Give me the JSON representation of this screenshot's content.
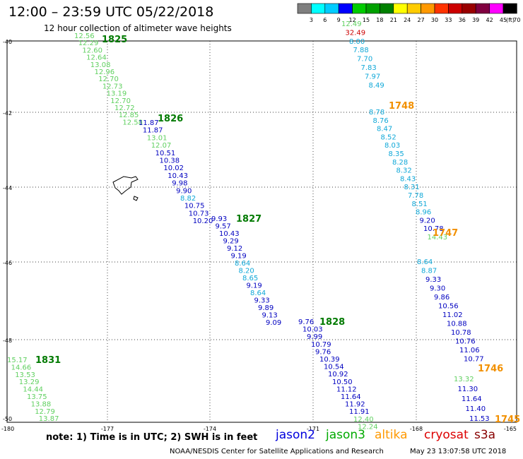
{
  "header": {
    "title": "12:00 – 23:59 UTC 05/22/2018",
    "subtitle": "12 hour collection of altimeter wave heights"
  },
  "legend": {
    "unit": "(ft)",
    "labels": [
      "3",
      "6",
      "9",
      "12",
      "15",
      "18",
      "21",
      "24",
      "27",
      "30",
      "33",
      "36",
      "39",
      "42",
      "45",
      "70"
    ],
    "colors": [
      "#7f7f7f",
      "#00ffff",
      "#00ccff",
      "#0000ff",
      "#00cc00",
      "#00a000",
      "#008000",
      "#ffff00",
      "#ffcc00",
      "#ff9900",
      "#ff3300",
      "#cc0000",
      "#990000",
      "#800040",
      "#ff00ff",
      "#000000"
    ]
  },
  "axes": {
    "lat_labels": [
      "-40",
      "-42",
      "-44",
      "-46",
      "-48",
      "-50"
    ],
    "lon_labels": [
      "-180",
      "-177",
      "-174",
      "-171",
      "-168",
      "-165"
    ]
  },
  "chart_data": {
    "type": "scatter",
    "note": "",
    "passes": [
      {
        "time": "1825",
        "time_color": "#007a00",
        "points": [
          [
            "12.56",
            "#60d060"
          ],
          [
            "12.29",
            "#60d060"
          ],
          [
            "12.60",
            "#60d060"
          ],
          [
            "12.64",
            "#60d060"
          ],
          [
            "13.08",
            "#60d060"
          ],
          [
            "12.96",
            "#60d060"
          ],
          [
            "12.70",
            "#60d060"
          ],
          [
            "12.73",
            "#60d060"
          ],
          [
            "13.19",
            "#60d060"
          ],
          [
            "12.70",
            "#60d060"
          ],
          [
            "12.72",
            "#60d060"
          ],
          [
            "12.85",
            "#60d060"
          ],
          [
            "12.58",
            "#60d060"
          ]
        ]
      },
      {
        "time": "1826",
        "time_color": "#007a00",
        "points": [
          [
            "11.87",
            "#0000c0"
          ],
          [
            "11.87",
            "#0000c0"
          ],
          [
            "13.01",
            "#60d060"
          ],
          [
            "12.07",
            "#60d060"
          ],
          [
            "10.51",
            "#0000c0"
          ],
          [
            "10.38",
            "#0000c0"
          ],
          [
            "10.02",
            "#0000c0"
          ],
          [
            "10.43",
            "#0000c0"
          ],
          [
            "9.98",
            "#0000c0"
          ],
          [
            "9.90",
            "#0000c0"
          ],
          [
            "8.82",
            "#10a8d8"
          ],
          [
            "10.75",
            "#0000c0"
          ],
          [
            "10.73",
            "#0000c0"
          ],
          [
            "10.20",
            "#0000c0"
          ]
        ]
      },
      {
        "time": "1827",
        "time_color": "#007a00",
        "points": [
          [
            "9.93",
            "#0000c0"
          ],
          [
            "9.57",
            "#0000c0"
          ],
          [
            "10.43",
            "#0000c0"
          ],
          [
            "9.29",
            "#0000c0"
          ],
          [
            "9.12",
            "#0000c0"
          ],
          [
            "9.19",
            "#0000c0"
          ],
          [
            "8.64",
            "#10a8d8"
          ],
          [
            "8.20",
            "#10a8d8"
          ],
          [
            "8.65",
            "#10a8d8"
          ],
          [
            "9.19",
            "#0000c0"
          ],
          [
            "8.64",
            "#10a8d8"
          ],
          [
            "9.33",
            "#0000c0"
          ],
          [
            "9.89",
            "#0000c0"
          ],
          [
            "9.13",
            "#0000c0"
          ],
          [
            "9.09",
            "#0000c0"
          ]
        ]
      },
      {
        "time": "1828",
        "time_color": "#007a00",
        "points": [
          [
            "9.76",
            "#0000c0"
          ],
          [
            "10.03",
            "#0000c0"
          ],
          [
            "9.99",
            "#0000c0"
          ],
          [
            "10.79",
            "#0000c0"
          ],
          [
            "9.76",
            "#0000c0"
          ],
          [
            "10.39",
            "#0000c0"
          ],
          [
            "10.54",
            "#0000c0"
          ],
          [
            "10.92",
            "#0000c0"
          ],
          [
            "10.50",
            "#0000c0"
          ],
          [
            "11.12",
            "#0000c0"
          ],
          [
            "11.64",
            "#0000c0"
          ],
          [
            "11.92",
            "#0000c0"
          ],
          [
            "11.91",
            "#0000c0"
          ],
          [
            "12.40",
            "#60d060"
          ],
          [
            "12.24",
            "#60d060"
          ]
        ]
      },
      {
        "time": "1831",
        "time_color": "#007a00",
        "points": [
          [
            "15.17",
            "#60d060"
          ],
          [
            "14.66",
            "#60d060"
          ],
          [
            "13.53",
            "#60d060"
          ],
          [
            "13.29",
            "#60d060"
          ],
          [
            "14.44",
            "#60d060"
          ],
          [
            "13.75",
            "#60d060"
          ],
          [
            "13.88",
            "#60d060"
          ],
          [
            "12.79",
            "#60d060"
          ],
          [
            "13.87",
            "#60d060"
          ]
        ]
      },
      {
        "time": "1748",
        "time_color": "#f29000",
        "points": [
          [
            "12.49",
            "#60d060"
          ],
          [
            "32.49",
            "#cc0000"
          ],
          [
            "8.00",
            "#10a8d8"
          ],
          [
            "7.88",
            "#10a8d8"
          ],
          [
            "7.70",
            "#10a8d8"
          ],
          [
            "7.83",
            "#10a8d8"
          ],
          [
            "7.97",
            "#10a8d8"
          ],
          [
            "8.49",
            "#10a8d8"
          ]
        ]
      },
      {
        "time": "1747",
        "time_color": "#f29000",
        "points": [
          [
            "8.78",
            "#10a8d8"
          ],
          [
            "8.76",
            "#10a8d8"
          ],
          [
            "8.47",
            "#10a8d8"
          ],
          [
            "8.52",
            "#10a8d8"
          ],
          [
            "8.03",
            "#10a8d8"
          ],
          [
            "8.35",
            "#10a8d8"
          ],
          [
            "8.28",
            "#10a8d8"
          ],
          [
            "8.32",
            "#10a8d8"
          ],
          [
            "8.43",
            "#10a8d8"
          ],
          [
            "8.31",
            "#10a8d8"
          ],
          [
            "7.78",
            "#10a8d8"
          ],
          [
            "8.51",
            "#10a8d8"
          ],
          [
            "8.96",
            "#10a8d8"
          ],
          [
            "9.20",
            "#0000c0"
          ],
          [
            "10.78",
            "#0000c0"
          ],
          [
            "14.43",
            "#60d060"
          ]
        ]
      },
      {
        "time": "1746",
        "time_color": "#f29000",
        "points": [
          [
            "8.64",
            "#10a8d8"
          ],
          [
            "8.87",
            "#10a8d8"
          ],
          [
            "9.33",
            "#0000c0"
          ],
          [
            "9.30",
            "#0000c0"
          ],
          [
            "9.86",
            "#0000c0"
          ],
          [
            "10.56",
            "#0000c0"
          ],
          [
            "11.02",
            "#0000c0"
          ],
          [
            "10.88",
            "#0000c0"
          ],
          [
            "10.78",
            "#0000c0"
          ],
          [
            "10.76",
            "#0000c0"
          ],
          [
            "11.06",
            "#0000c0"
          ],
          [
            "10.77",
            "#0000c0"
          ]
        ]
      },
      {
        "time": "1745",
        "time_color": "#f29000",
        "points": [
          [
            "13.32",
            "#60d060"
          ],
          [
            "11.30",
            "#0000c0"
          ],
          [
            "11.64",
            "#0000c0"
          ],
          [
            "11.40",
            "#0000c0"
          ],
          [
            "11.53",
            "#0000c0"
          ]
        ]
      }
    ]
  },
  "footer": {
    "note": "note:  1) Time is in UTC;  2) SWH is in feet",
    "satellites": [
      {
        "name": "jason2",
        "color": "#0000dd"
      },
      {
        "name": "jason3",
        "color": "#00aa00"
      },
      {
        "name": "altika",
        "color": "#ff9900"
      },
      {
        "name": "cryosat",
        "color": "#dd0000"
      },
      {
        "name": "s3a",
        "color": "#880000"
      }
    ],
    "credit": "NOAA/NESDIS Center for Satellite Applications and Research",
    "timestamp": "May 23 13:07:58 UTC 2018"
  }
}
